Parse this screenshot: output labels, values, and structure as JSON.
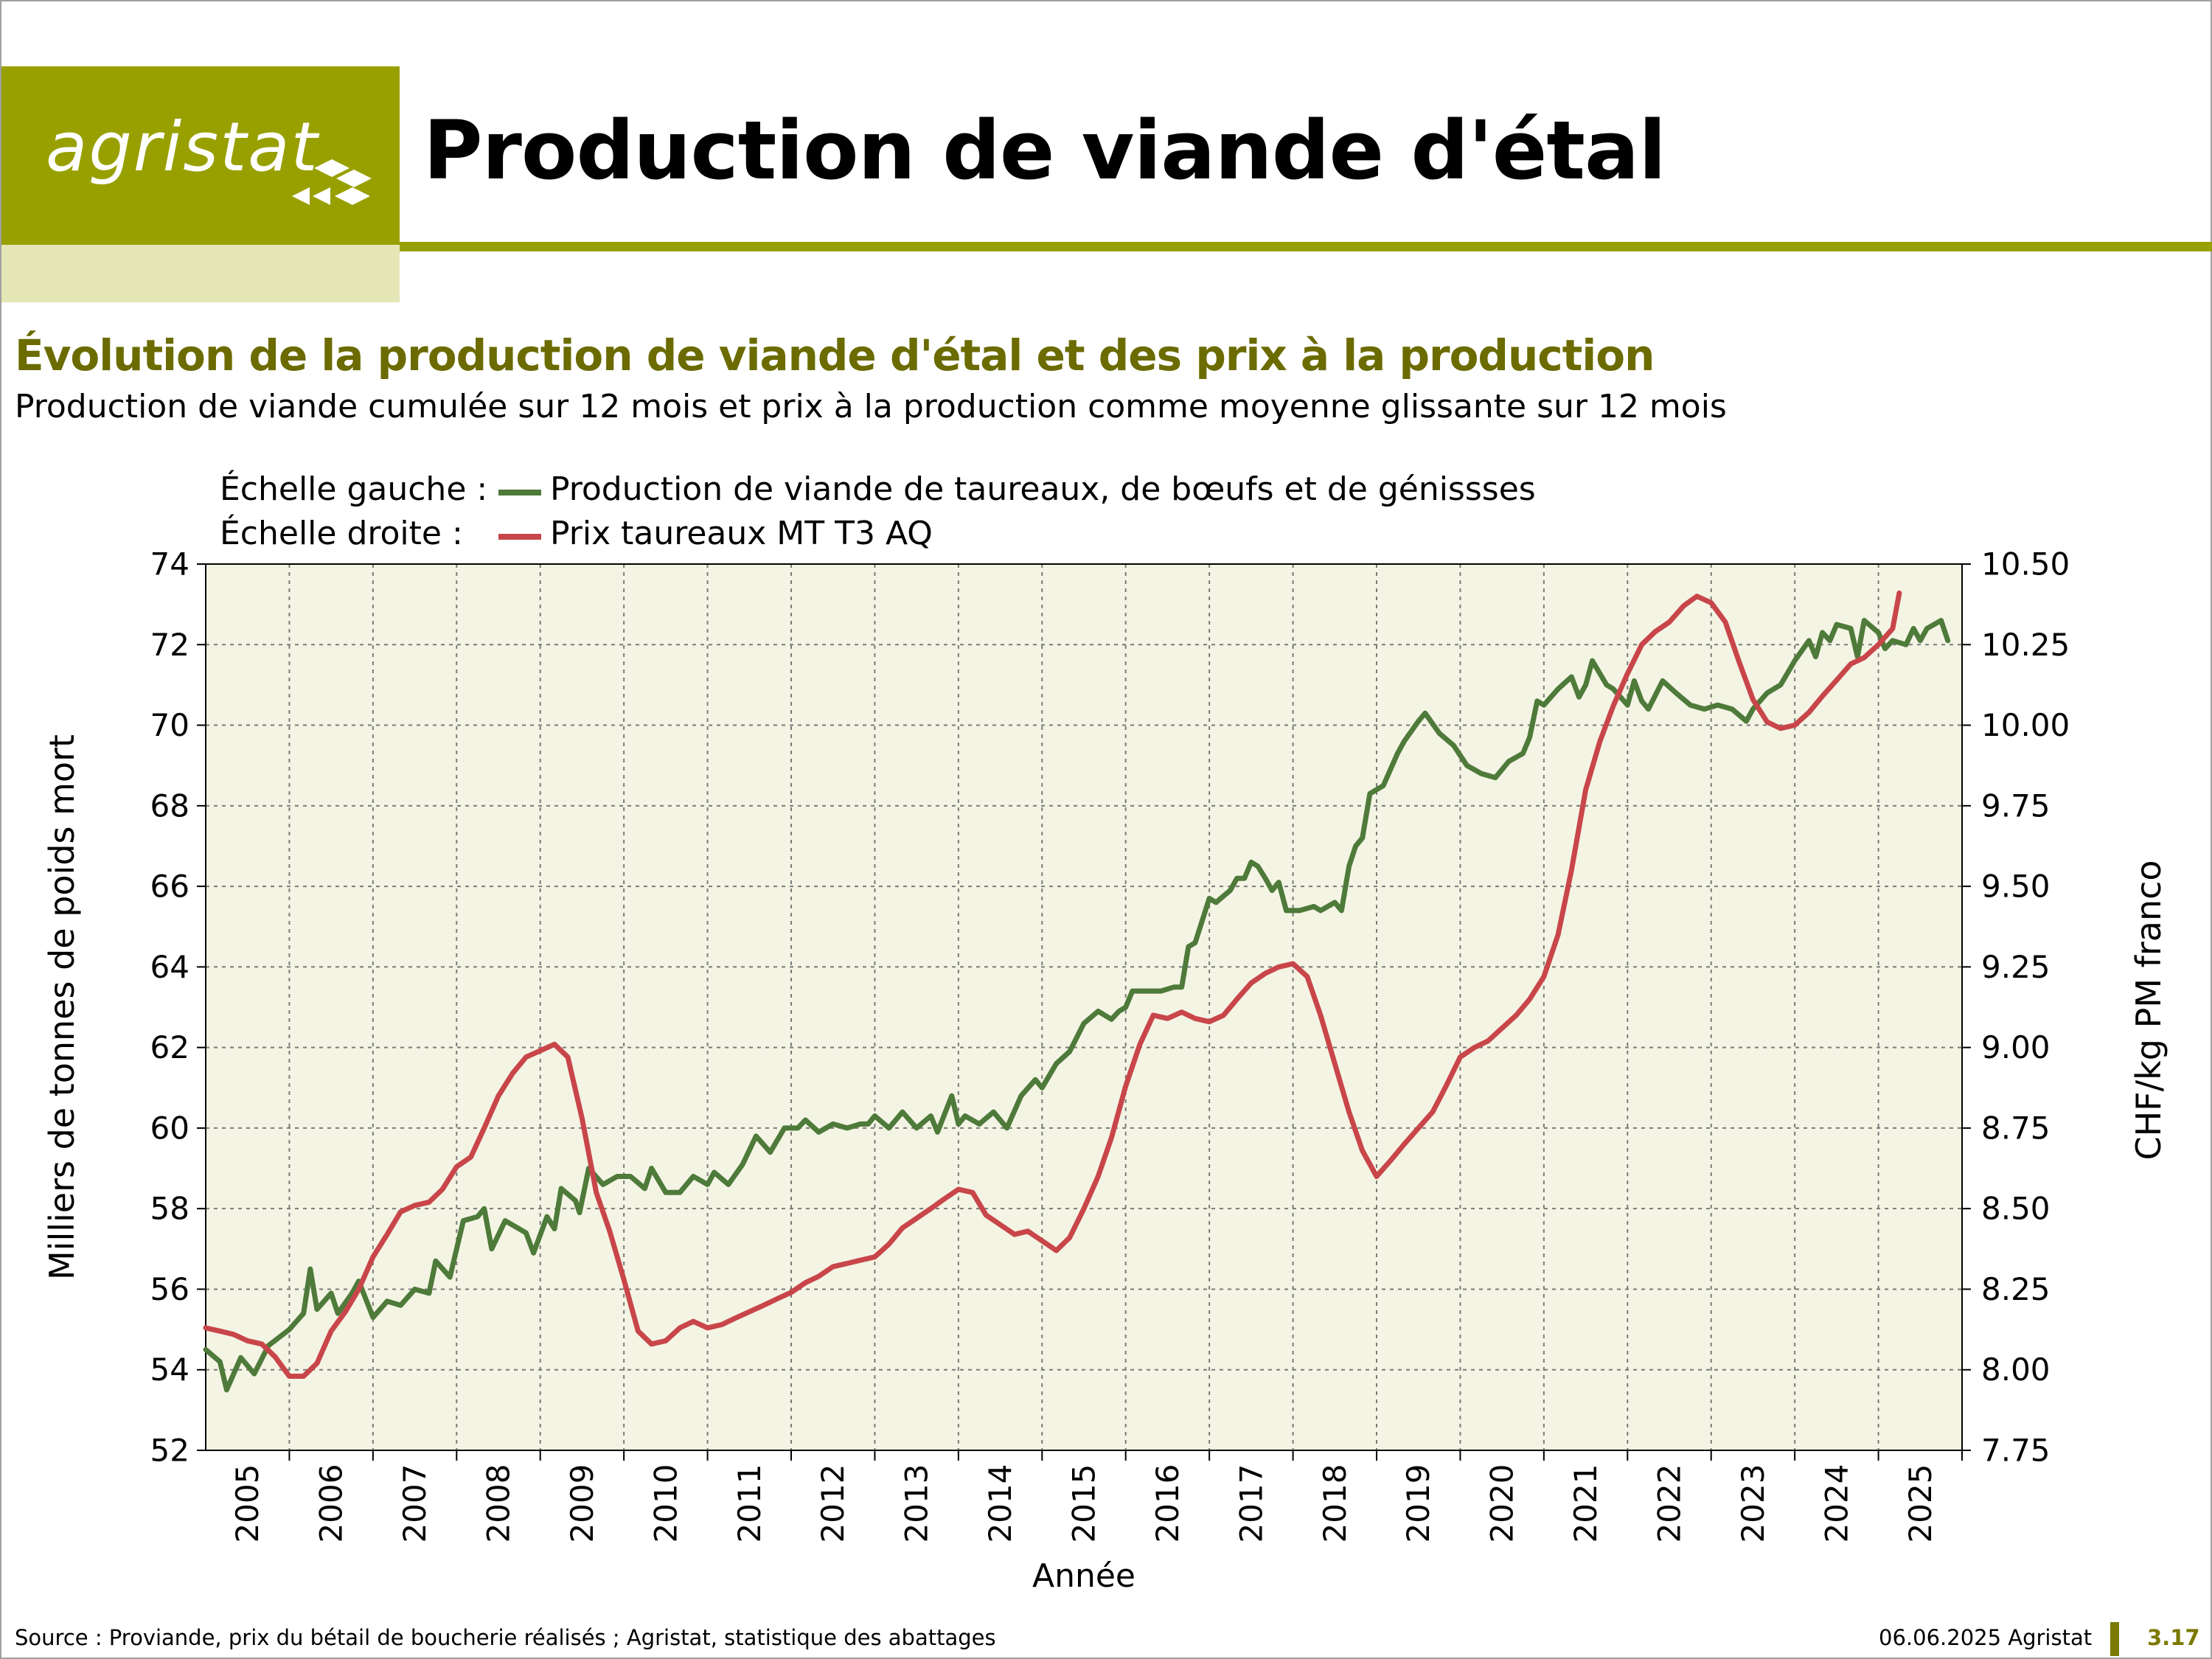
{
  "header": {
    "logo_text": "agristat",
    "page_title": "Production de viande d'étal"
  },
  "chart_heading": {
    "title": "Évolution de la production de viande d'étal et des prix à la production",
    "subtitle": "Production de viande cumulée sur 12 mois et prix à la production comme moyenne glissante sur 12 mois"
  },
  "legend": {
    "left_prefix": "Échelle gauche :",
    "right_prefix": "Échelle droite :",
    "left_series": "Production de viande de taureaux, de bœufs et de génissses",
    "right_series": "Prix taureaux MT T3 AQ"
  },
  "colors": {
    "production": "#4e7a3a",
    "price": "#c8464a",
    "plot_bg": "#f4f4e4",
    "brand": "#98a000"
  },
  "chart_data": {
    "type": "line",
    "xlabel": "Année",
    "ylabel_left": "Milliers de tonnes de poids mort",
    "ylabel_right": "CHF/kg PM franco",
    "ylim_left": [
      52,
      74
    ],
    "ylim_right": [
      7.75,
      10.5
    ],
    "x_range": [
      2004.5,
      2025.5
    ],
    "grid": true,
    "legend_position": "top-left",
    "x_tick_labels": [
      "2005",
      "2006",
      "2007",
      "2008",
      "2009",
      "2010",
      "2011",
      "2012",
      "2013",
      "2014",
      "2015",
      "2016",
      "2017",
      "2018",
      "2019",
      "2020",
      "2021",
      "2022",
      "2023",
      "2024",
      "2025"
    ],
    "y_left_tick_labels": [
      "52",
      "54",
      "56",
      "58",
      "60",
      "62",
      "64",
      "66",
      "68",
      "70",
      "72",
      "74"
    ],
    "y_right_tick_labels": [
      "7.75",
      "8.00",
      "8.25",
      "8.50",
      "8.75",
      "9.00",
      "9.25",
      "9.50",
      "9.75",
      "10.00",
      "10.25",
      "10.50"
    ],
    "series": [
      {
        "name": "Production de viande de taureaux, de bœufs et de génissses",
        "axis": "left",
        "points": [
          [
            2004.5,
            54.5
          ],
          [
            2004.67,
            54.2
          ],
          [
            2004.75,
            53.5
          ],
          [
            2004.92,
            54.3
          ],
          [
            2005.08,
            53.9
          ],
          [
            2005.25,
            54.6
          ],
          [
            2005.5,
            55.0
          ],
          [
            2005.67,
            55.4
          ],
          [
            2005.75,
            56.5
          ],
          [
            2005.83,
            55.5
          ],
          [
            2006.0,
            55.9
          ],
          [
            2006.08,
            55.4
          ],
          [
            2006.25,
            55.9
          ],
          [
            2006.33,
            56.2
          ],
          [
            2006.5,
            55.3
          ],
          [
            2006.67,
            55.7
          ],
          [
            2006.83,
            55.6
          ],
          [
            2007.0,
            56.0
          ],
          [
            2007.17,
            55.9
          ],
          [
            2007.25,
            56.7
          ],
          [
            2007.42,
            56.3
          ],
          [
            2007.58,
            57.7
          ],
          [
            2007.75,
            57.8
          ],
          [
            2007.83,
            58.0
          ],
          [
            2007.92,
            57.0
          ],
          [
            2008.08,
            57.7
          ],
          [
            2008.33,
            57.4
          ],
          [
            2008.42,
            56.9
          ],
          [
            2008.58,
            57.8
          ],
          [
            2008.67,
            57.5
          ],
          [
            2008.75,
            58.5
          ],
          [
            2008.92,
            58.2
          ],
          [
            2008.97,
            57.9
          ],
          [
            2009.08,
            59.0
          ],
          [
            2009.25,
            58.6
          ],
          [
            2009.42,
            58.8
          ],
          [
            2009.58,
            58.8
          ],
          [
            2009.75,
            58.5
          ],
          [
            2009.83,
            59.0
          ],
          [
            2010.0,
            58.4
          ],
          [
            2010.17,
            58.4
          ],
          [
            2010.33,
            58.8
          ],
          [
            2010.5,
            58.6
          ],
          [
            2010.58,
            58.9
          ],
          [
            2010.75,
            58.6
          ],
          [
            2010.92,
            59.1
          ],
          [
            2011.08,
            59.8
          ],
          [
            2011.25,
            59.4
          ],
          [
            2011.42,
            60.0
          ],
          [
            2011.58,
            60.0
          ],
          [
            2011.67,
            60.2
          ],
          [
            2011.83,
            59.9
          ],
          [
            2012.0,
            60.1
          ],
          [
            2012.17,
            60.0
          ],
          [
            2012.33,
            60.1
          ],
          [
            2012.42,
            60.1
          ],
          [
            2012.5,
            60.3
          ],
          [
            2012.67,
            60.0
          ],
          [
            2012.83,
            60.4
          ],
          [
            2013.0,
            60.0
          ],
          [
            2013.17,
            60.3
          ],
          [
            2013.25,
            59.9
          ],
          [
            2013.42,
            60.8
          ],
          [
            2013.5,
            60.1
          ],
          [
            2013.58,
            60.3
          ],
          [
            2013.75,
            60.1
          ],
          [
            2013.92,
            60.4
          ],
          [
            2014.08,
            60.0
          ],
          [
            2014.25,
            60.8
          ],
          [
            2014.42,
            61.2
          ],
          [
            2014.5,
            61.0
          ],
          [
            2014.67,
            61.6
          ],
          [
            2014.83,
            61.9
          ],
          [
            2015.0,
            62.6
          ],
          [
            2015.17,
            62.9
          ],
          [
            2015.33,
            62.7
          ],
          [
            2015.42,
            62.9
          ],
          [
            2015.5,
            63.0
          ],
          [
            2015.58,
            63.4
          ],
          [
            2015.75,
            63.4
          ],
          [
            2015.92,
            63.4
          ],
          [
            2016.08,
            63.5
          ],
          [
            2016.17,
            63.5
          ],
          [
            2016.25,
            64.5
          ],
          [
            2016.33,
            64.6
          ],
          [
            2016.5,
            65.7
          ],
          [
            2016.58,
            65.6
          ],
          [
            2016.75,
            65.9
          ],
          [
            2016.83,
            66.2
          ],
          [
            2016.92,
            66.2
          ],
          [
            2017.0,
            66.6
          ],
          [
            2017.08,
            66.5
          ],
          [
            2017.17,
            66.2
          ],
          [
            2017.25,
            65.9
          ],
          [
            2017.33,
            66.1
          ],
          [
            2017.42,
            65.4
          ],
          [
            2017.58,
            65.4
          ],
          [
            2017.75,
            65.5
          ],
          [
            2017.83,
            65.4
          ],
          [
            2018.0,
            65.6
          ],
          [
            2018.08,
            65.4
          ],
          [
            2018.17,
            66.5
          ],
          [
            2018.25,
            67.0
          ],
          [
            2018.33,
            67.2
          ],
          [
            2018.42,
            68.3
          ],
          [
            2018.58,
            68.5
          ],
          [
            2018.75,
            69.3
          ],
          [
            2018.83,
            69.6
          ],
          [
            2019.0,
            70.1
          ],
          [
            2019.08,
            70.3
          ],
          [
            2019.25,
            69.8
          ],
          [
            2019.42,
            69.5
          ],
          [
            2019.58,
            69.0
          ],
          [
            2019.75,
            68.8
          ],
          [
            2019.92,
            68.7
          ],
          [
            2020.08,
            69.1
          ],
          [
            2020.25,
            69.3
          ],
          [
            2020.33,
            69.7
          ],
          [
            2020.42,
            70.6
          ],
          [
            2020.5,
            70.5
          ],
          [
            2020.67,
            70.9
          ],
          [
            2020.83,
            71.2
          ],
          [
            2020.92,
            70.7
          ],
          [
            2021.0,
            71.0
          ],
          [
            2021.08,
            71.6
          ],
          [
            2021.25,
            71.0
          ],
          [
            2021.33,
            70.9
          ],
          [
            2021.5,
            70.5
          ],
          [
            2021.58,
            71.1
          ],
          [
            2021.67,
            70.6
          ],
          [
            2021.75,
            70.4
          ],
          [
            2021.92,
            71.1
          ],
          [
            2022.08,
            70.8
          ],
          [
            2022.25,
            70.5
          ],
          [
            2022.42,
            70.4
          ],
          [
            2022.58,
            70.5
          ],
          [
            2022.75,
            70.4
          ],
          [
            2022.92,
            70.1
          ],
          [
            2023.0,
            70.4
          ],
          [
            2023.17,
            70.8
          ],
          [
            2023.33,
            71.0
          ],
          [
            2023.5,
            71.6
          ],
          [
            2023.67,
            72.1
          ],
          [
            2023.75,
            71.7
          ],
          [
            2023.83,
            72.3
          ],
          [
            2023.92,
            72.1
          ],
          [
            2024.0,
            72.5
          ],
          [
            2024.17,
            72.4
          ],
          [
            2024.25,
            71.7
          ],
          [
            2024.33,
            72.6
          ],
          [
            2024.5,
            72.3
          ],
          [
            2024.58,
            71.9
          ],
          [
            2024.67,
            72.1
          ],
          [
            2024.83,
            72.0
          ],
          [
            2024.92,
            72.4
          ],
          [
            2025.0,
            72.1
          ],
          [
            2025.08,
            72.4
          ],
          [
            2025.25,
            72.6
          ],
          [
            2025.33,
            72.1
          ]
        ]
      },
      {
        "name": "Prix taureaux MT T3 AQ",
        "axis": "right",
        "points": [
          [
            2004.5,
            8.13
          ],
          [
            2004.67,
            8.12
          ],
          [
            2004.83,
            8.11
          ],
          [
            2005.0,
            8.09
          ],
          [
            2005.17,
            8.08
          ],
          [
            2005.33,
            8.04
          ],
          [
            2005.5,
            7.98
          ],
          [
            2005.67,
            7.98
          ],
          [
            2005.83,
            8.02
          ],
          [
            2006.0,
            8.12
          ],
          [
            2006.17,
            8.18
          ],
          [
            2006.33,
            8.25
          ],
          [
            2006.5,
            8.35
          ],
          [
            2006.67,
            8.42
          ],
          [
            2006.83,
            8.49
          ],
          [
            2007.0,
            8.51
          ],
          [
            2007.17,
            8.52
          ],
          [
            2007.33,
            8.56
          ],
          [
            2007.5,
            8.63
          ],
          [
            2007.67,
            8.66
          ],
          [
            2007.83,
            8.75
          ],
          [
            2008.0,
            8.85
          ],
          [
            2008.17,
            8.92
          ],
          [
            2008.33,
            8.97
          ],
          [
            2008.5,
            8.99
          ],
          [
            2008.67,
            9.01
          ],
          [
            2008.83,
            8.97
          ],
          [
            2009.0,
            8.78
          ],
          [
            2009.17,
            8.55
          ],
          [
            2009.33,
            8.43
          ],
          [
            2009.5,
            8.28
          ],
          [
            2009.67,
            8.12
          ],
          [
            2009.83,
            8.08
          ],
          [
            2010.0,
            8.09
          ],
          [
            2010.17,
            8.13
          ],
          [
            2010.33,
            8.15
          ],
          [
            2010.5,
            8.13
          ],
          [
            2010.67,
            8.14
          ],
          [
            2010.83,
            8.16
          ],
          [
            2011.0,
            8.18
          ],
          [
            2011.17,
            8.2
          ],
          [
            2011.33,
            8.22
          ],
          [
            2011.5,
            8.24
          ],
          [
            2011.67,
            8.27
          ],
          [
            2011.83,
            8.29
          ],
          [
            2012.0,
            8.32
          ],
          [
            2012.17,
            8.33
          ],
          [
            2012.33,
            8.34
          ],
          [
            2012.5,
            8.35
          ],
          [
            2012.67,
            8.39
          ],
          [
            2012.83,
            8.44
          ],
          [
            2013.0,
            8.47
          ],
          [
            2013.17,
            8.5
          ],
          [
            2013.33,
            8.53
          ],
          [
            2013.5,
            8.56
          ],
          [
            2013.67,
            8.55
          ],
          [
            2013.83,
            8.48
          ],
          [
            2014.0,
            8.45
          ],
          [
            2014.17,
            8.42
          ],
          [
            2014.33,
            8.43
          ],
          [
            2014.5,
            8.4
          ],
          [
            2014.67,
            8.37
          ],
          [
            2014.83,
            8.41
          ],
          [
            2015.0,
            8.5
          ],
          [
            2015.17,
            8.6
          ],
          [
            2015.33,
            8.72
          ],
          [
            2015.5,
            8.88
          ],
          [
            2015.67,
            9.01
          ],
          [
            2015.83,
            9.1
          ],
          [
            2016.0,
            9.09
          ],
          [
            2016.17,
            9.11
          ],
          [
            2016.33,
            9.09
          ],
          [
            2016.5,
            9.08
          ],
          [
            2016.67,
            9.1
          ],
          [
            2016.83,
            9.15
          ],
          [
            2017.0,
            9.2
          ],
          [
            2017.17,
            9.23
          ],
          [
            2017.33,
            9.25
          ],
          [
            2017.5,
            9.26
          ],
          [
            2017.67,
            9.22
          ],
          [
            2017.83,
            9.1
          ],
          [
            2018.0,
            8.95
          ],
          [
            2018.17,
            8.8
          ],
          [
            2018.33,
            8.68
          ],
          [
            2018.5,
            8.6
          ],
          [
            2018.67,
            8.65
          ],
          [
            2018.83,
            8.7
          ],
          [
            2019.0,
            8.75
          ],
          [
            2019.17,
            8.8
          ],
          [
            2019.33,
            8.88
          ],
          [
            2019.5,
            8.97
          ],
          [
            2019.67,
            9.0
          ],
          [
            2019.83,
            9.02
          ],
          [
            2020.0,
            9.06
          ],
          [
            2020.17,
            9.1
          ],
          [
            2020.33,
            9.15
          ],
          [
            2020.5,
            9.22
          ],
          [
            2020.67,
            9.35
          ],
          [
            2020.83,
            9.55
          ],
          [
            2021.0,
            9.8
          ],
          [
            2021.17,
            9.95
          ],
          [
            2021.33,
            10.06
          ],
          [
            2021.5,
            10.16
          ],
          [
            2021.67,
            10.25
          ],
          [
            2021.83,
            10.29
          ],
          [
            2022.0,
            10.32
          ],
          [
            2022.17,
            10.37
          ],
          [
            2022.33,
            10.4
          ],
          [
            2022.5,
            10.38
          ],
          [
            2022.67,
            10.32
          ],
          [
            2022.83,
            10.2
          ],
          [
            2023.0,
            10.08
          ],
          [
            2023.17,
            10.01
          ],
          [
            2023.33,
            9.99
          ],
          [
            2023.5,
            10.0
          ],
          [
            2023.67,
            10.04
          ],
          [
            2023.83,
            10.09
          ],
          [
            2024.0,
            10.14
          ],
          [
            2024.17,
            10.19
          ],
          [
            2024.33,
            10.21
          ],
          [
            2024.5,
            10.25
          ],
          [
            2024.67,
            10.3
          ],
          [
            2024.75,
            10.41
          ]
        ]
      }
    ]
  },
  "footer": {
    "source": "Source : Proviande, prix du bétail de boucherie réalisés ; Agristat, statistique des abattages",
    "date": "06.06.2025 Agristat",
    "page_number": "3.17"
  }
}
